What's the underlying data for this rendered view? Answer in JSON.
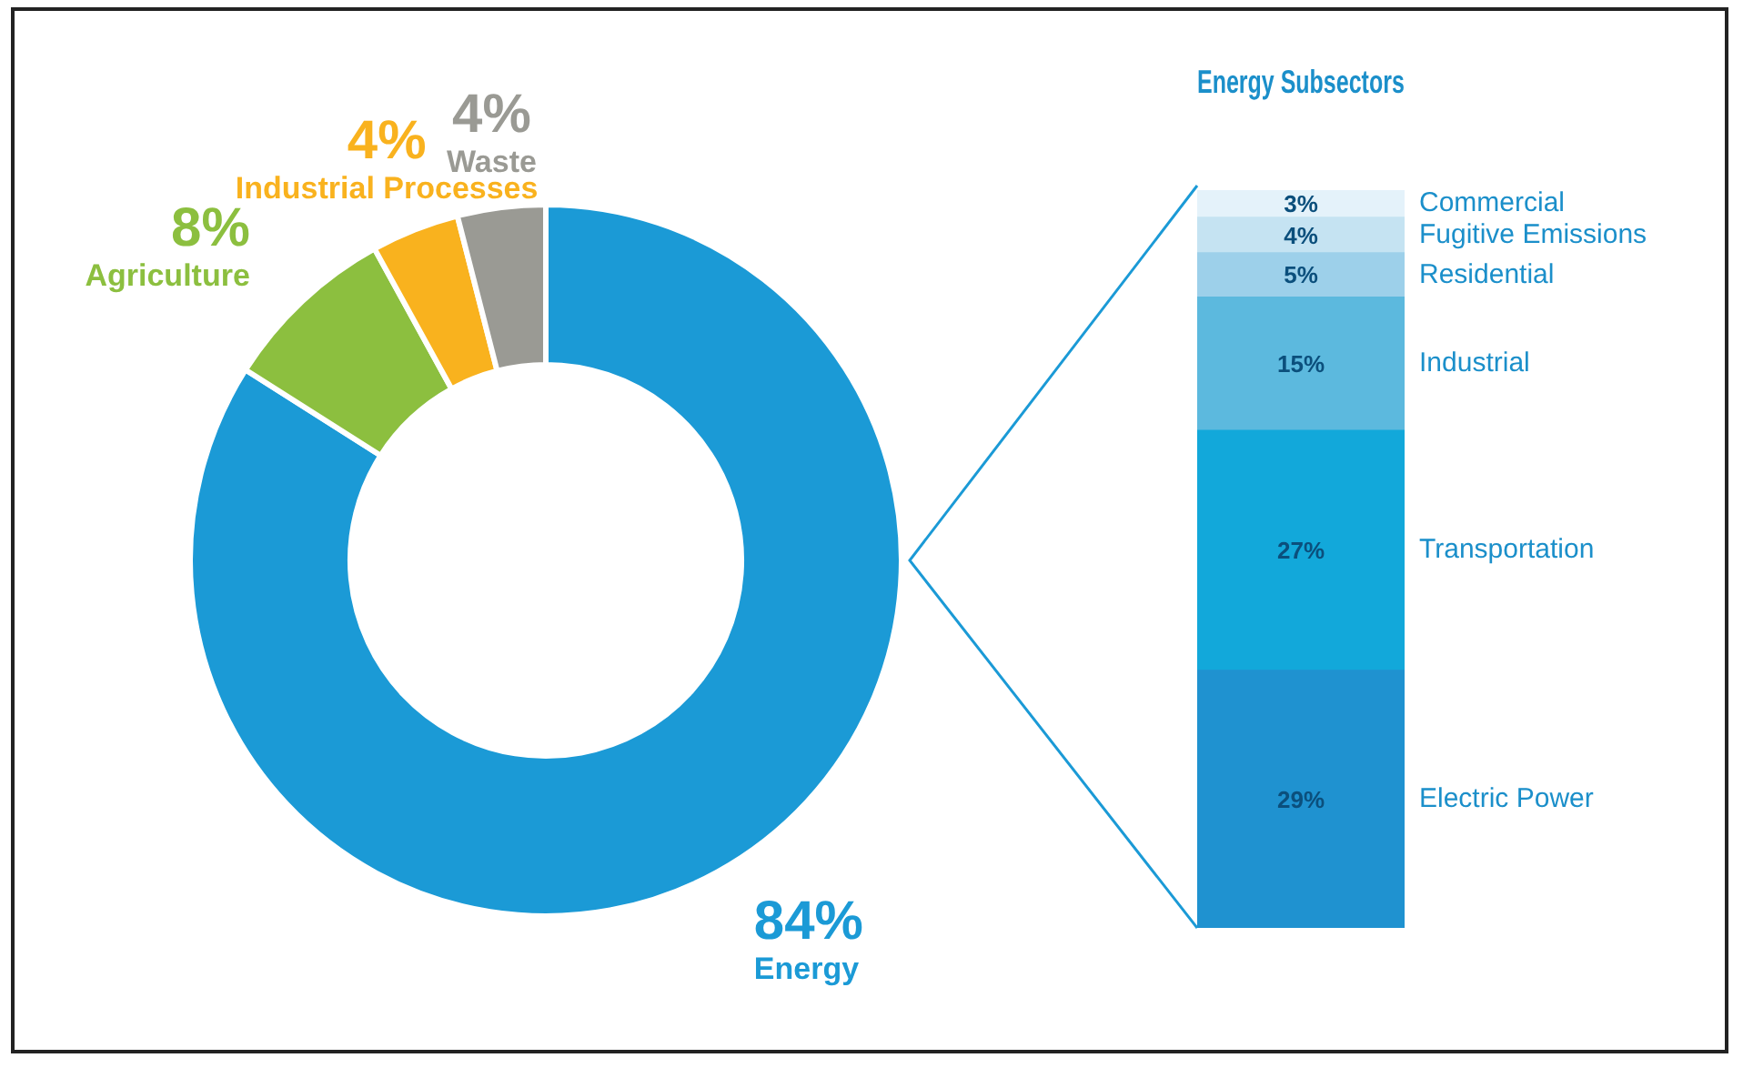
{
  "chart_data": [
    {
      "type": "donut",
      "categories": [
        "Energy",
        "Agriculture",
        "Industrial Processes",
        "Waste"
      ],
      "values": [
        84,
        8,
        4,
        4
      ],
      "value_labels": [
        "84%",
        "8%",
        "4%",
        "4%"
      ],
      "colors": [
        "#1b9ad6",
        "#8cbf3f",
        "#f9b21e",
        "#9a9a94"
      ]
    },
    {
      "type": "bar",
      "title": "Energy Subsectors",
      "stacked": true,
      "tick_labels": false,
      "categories": [
        null
      ],
      "series": [
        {
          "name": "Electric Power",
          "color": "#1f92d0",
          "values": [
            29
          ],
          "value_labels": [
            "29%"
          ]
        },
        {
          "name": "Transportation",
          "color": "#12a8da",
          "values": [
            27
          ],
          "value_labels": [
            "27%"
          ]
        },
        {
          "name": "Industrial",
          "color": "#5cb9de",
          "values": [
            15
          ],
          "value_labels": [
            "15%"
          ]
        },
        {
          "name": "Residential",
          "color": "#9dd0ea",
          "values": [
            5
          ],
          "value_labels": [
            "5%"
          ]
        },
        {
          "name": "Fugitive Emissions",
          "color": "#c5e3f2",
          "values": [
            4
          ],
          "value_labels": [
            "4%"
          ]
        },
        {
          "name": "Commercial",
          "color": "#e4f2fa",
          "values": [
            3
          ],
          "value_labels": [
            "3%"
          ]
        }
      ]
    }
  ]
}
